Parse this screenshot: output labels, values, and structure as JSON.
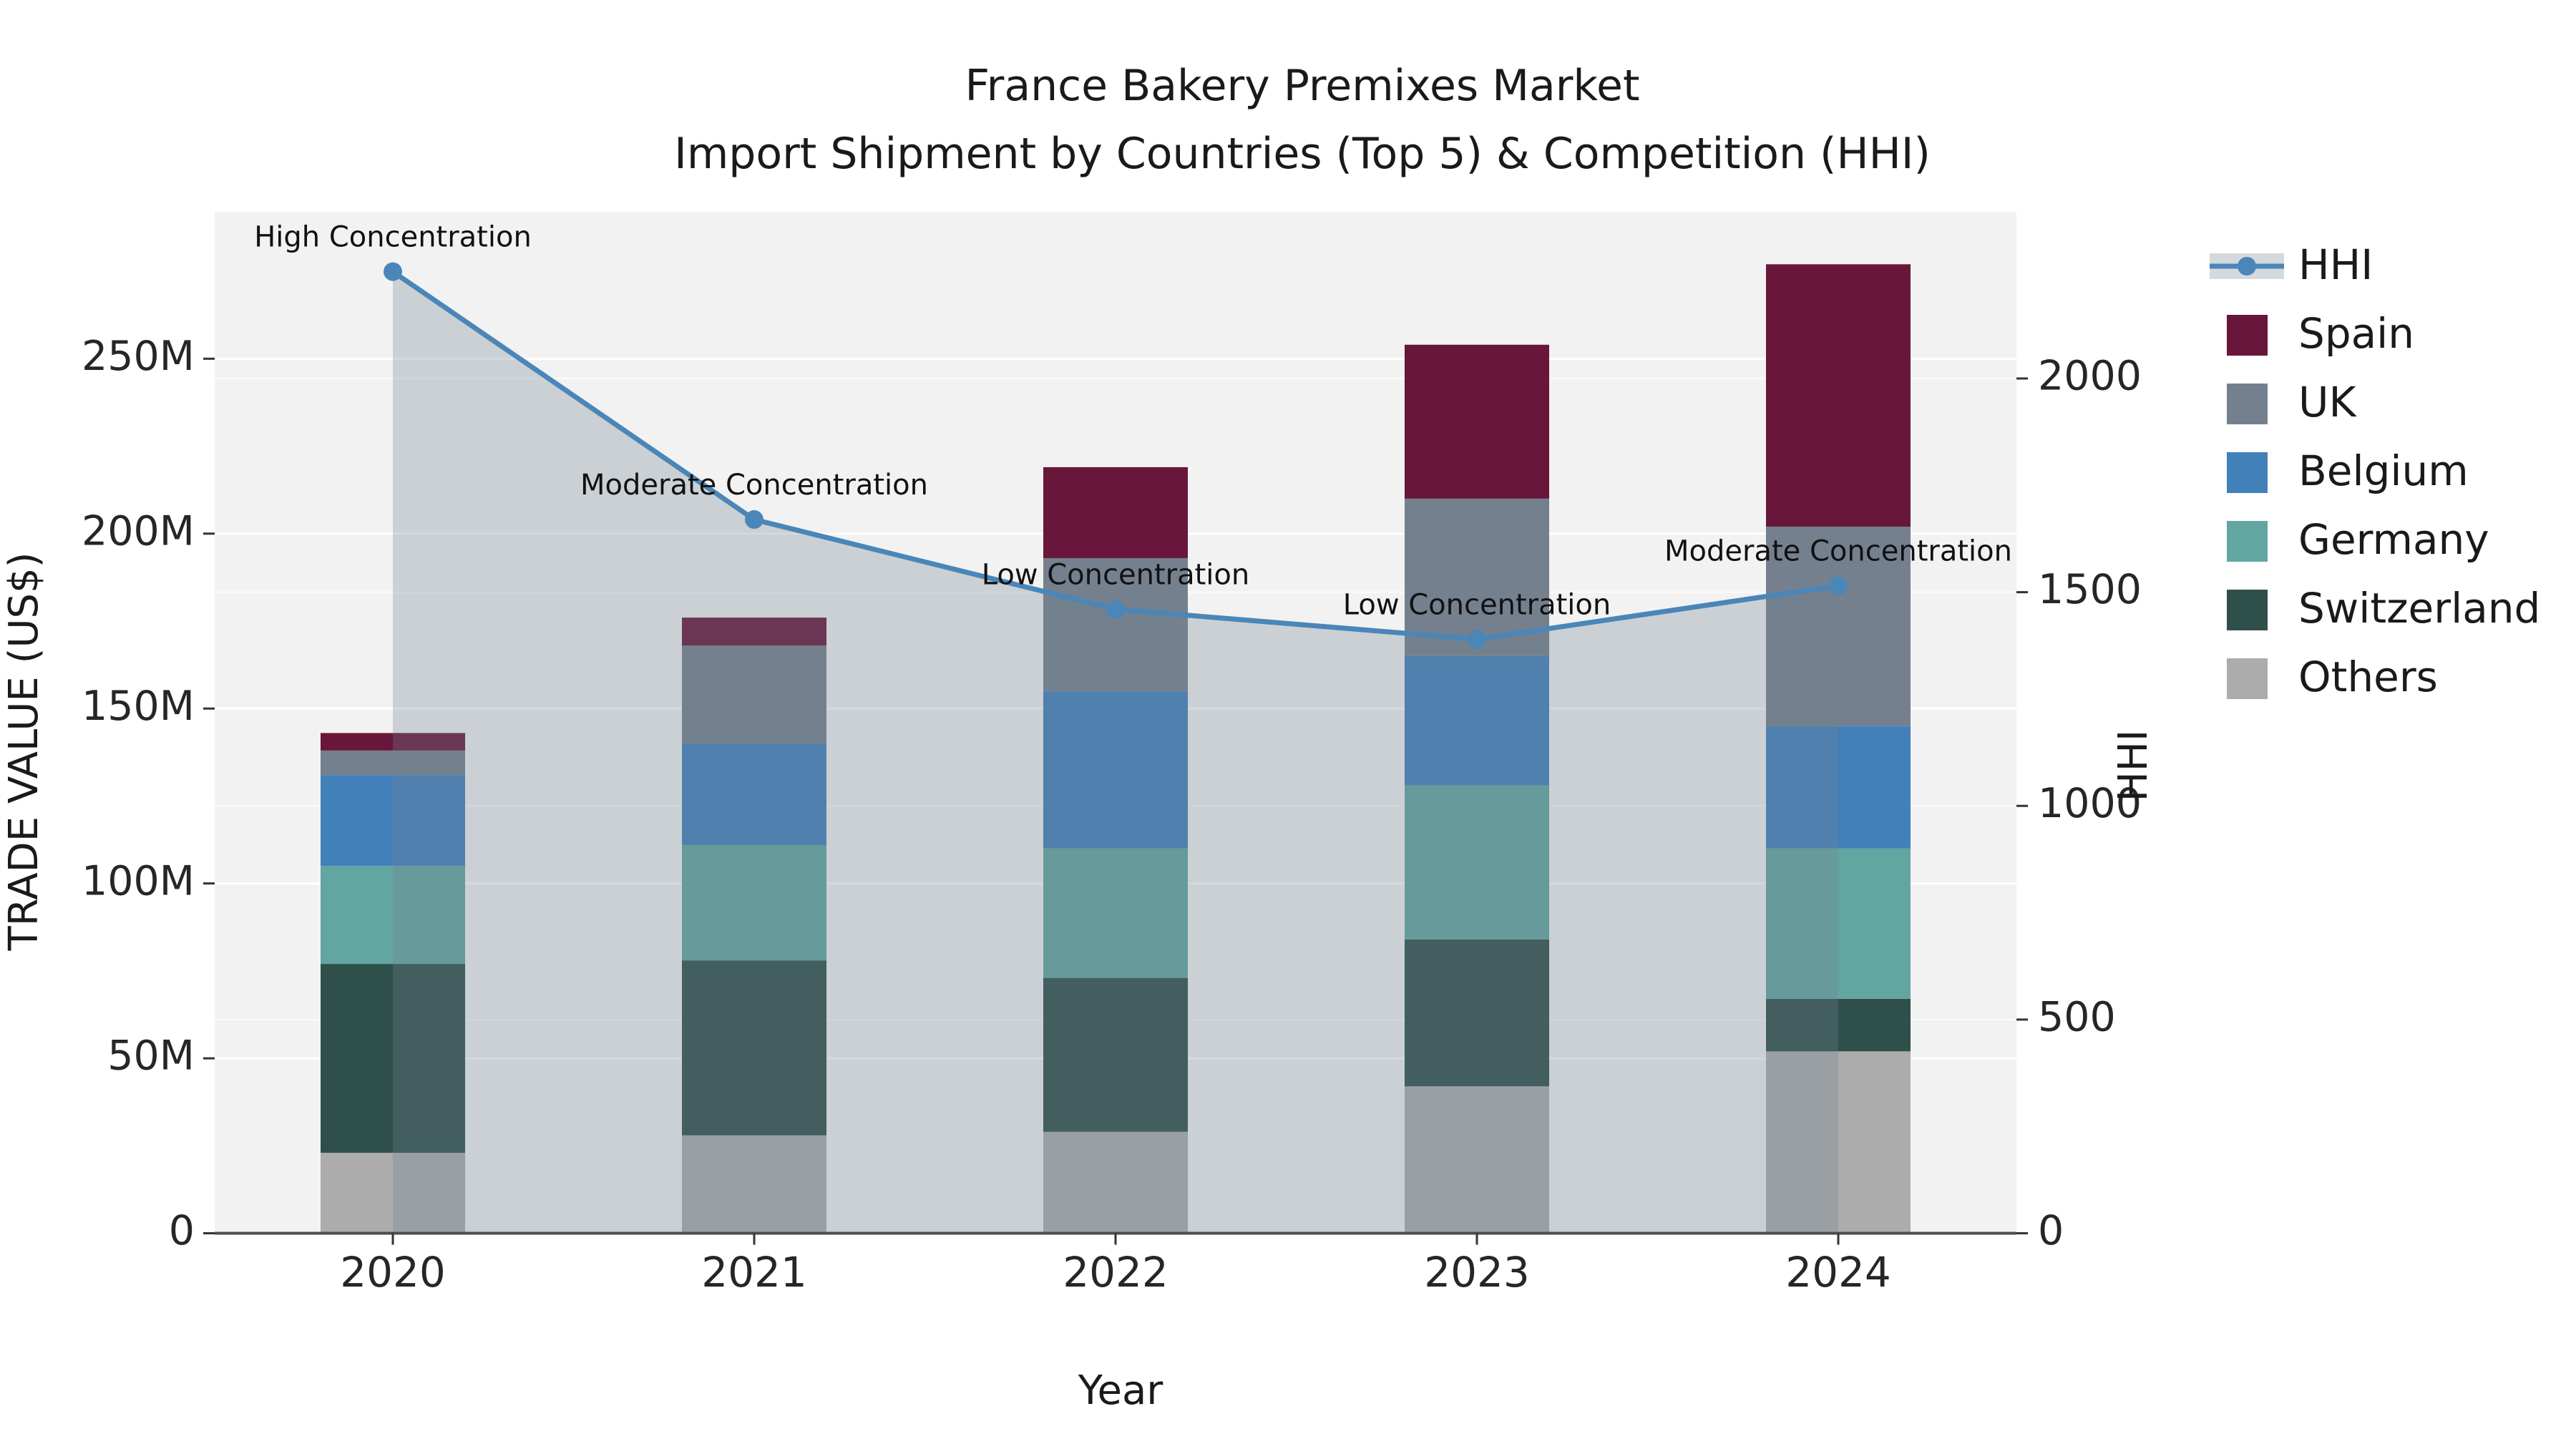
{
  "title": {
    "line1": "France Bakery Premixes Market",
    "line2": "Import Shipment by Countries (Top 5) & Competition (HHI)"
  },
  "axes": {
    "x_label": "Year",
    "y_left_label": "TRADE VALUE (US$)",
    "y_right_label": "HHI",
    "y_left_tick_labels": [
      "0",
      "50M",
      "100M",
      "150M",
      "200M",
      "250M"
    ],
    "y_left_tick_values": [
      0,
      50,
      100,
      150,
      200,
      250
    ],
    "y_right_tick_labels": [
      "0",
      "500",
      "1000",
      "1500",
      "2000"
    ],
    "y_right_tick_values": [
      0,
      500,
      1000,
      1500,
      2000
    ]
  },
  "legend": {
    "entries": [
      {
        "label": "HHI",
        "type": "line"
      },
      {
        "label": "Spain",
        "type": "swatch",
        "color": "#68163a"
      },
      {
        "label": "UK",
        "type": "swatch",
        "color": "#75808f"
      },
      {
        "label": "Belgium",
        "type": "swatch",
        "color": "#4280ba"
      },
      {
        "label": "Germany",
        "type": "swatch",
        "color": "#62a5a1"
      },
      {
        "label": "Switzerland",
        "type": "swatch",
        "color": "#2f4f4a"
      },
      {
        "label": "Others",
        "type": "swatch",
        "color": "#acacac"
      }
    ]
  },
  "colors": {
    "plot_background": "#f2f2f2",
    "grid_major": "#ffffff",
    "hhi_line": "#4a86b8",
    "hhi_fill": "rgba(112,128,144,0.30)",
    "axis_spine": "#4d4d4d",
    "tick_mark": "#333333"
  },
  "chart_data": {
    "type": "combo: stacked-bar (left axis) + line with area fill (right axis)",
    "categories": [
      "2020",
      "2021",
      "2022",
      "2023",
      "2024"
    ],
    "bar_unit": "million US$ (trade value)",
    "series": [
      {
        "name": "Spain",
        "color": "#68163a",
        "values": [
          5,
          8,
          26,
          44,
          75
        ]
      },
      {
        "name": "UK",
        "color": "#75808f",
        "values": [
          7,
          28,
          38,
          45,
          57
        ]
      },
      {
        "name": "Belgium",
        "color": "#4280ba",
        "values": [
          26,
          29,
          45,
          37,
          35
        ]
      },
      {
        "name": "Germany",
        "color": "#62a5a1",
        "values": [
          28,
          33,
          37,
          44,
          43
        ]
      },
      {
        "name": "Switzerland",
        "color": "#2f4f4a",
        "values": [
          54,
          50,
          44,
          42,
          15
        ]
      },
      {
        "name": "Others",
        "color": "#acacac",
        "values": [
          23,
          28,
          29,
          42,
          52
        ]
      }
    ],
    "stack_order_bottom_to_top": [
      "Others",
      "Switzerland",
      "Germany",
      "Belgium",
      "UK",
      "Spain"
    ],
    "bar_totals": [
      143,
      176,
      219,
      254,
      277
    ],
    "line_series": {
      "name": "HHI",
      "values": [
        2250,
        1670,
        1460,
        1390,
        1515
      ]
    },
    "annotations": [
      "High Concentration",
      "Moderate Concentration",
      "Low Concentration",
      "Low Concentration",
      "Moderate Concentration"
    ],
    "ylim_left_millions": [
      0,
      292
    ],
    "ylim_right_hhi": [
      0,
      2390
    ],
    "grid": true,
    "legend_position": "right-outside"
  }
}
